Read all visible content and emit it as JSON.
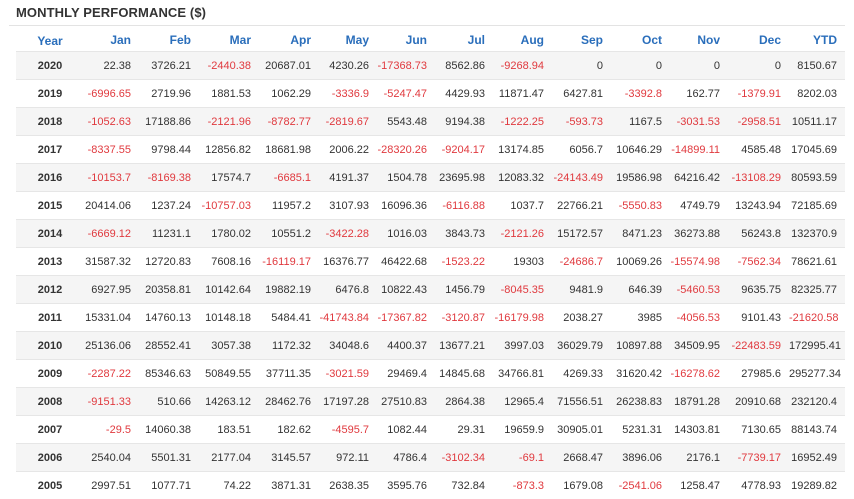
{
  "title": "MONTHLY PERFORMANCE ($)",
  "colors": {
    "header": "#2a6ebb",
    "negative": "#e0393e",
    "text": "#333333",
    "stripe": "#f5f5f5"
  },
  "columns": [
    "Year",
    "Jan",
    "Feb",
    "Mar",
    "Apr",
    "May",
    "Jun",
    "Jul",
    "Aug",
    "Sep",
    "Oct",
    "Nov",
    "Dec",
    "YTD"
  ],
  "rows": [
    [
      "2020",
      "22.38",
      "3726.21",
      "-2440.38",
      "20687.01",
      "4230.26",
      "-17368.73",
      "8562.86",
      "-9268.94",
      "0",
      "0",
      "0",
      "0",
      "8150.67"
    ],
    [
      "2019",
      "-6996.65",
      "2719.96",
      "1881.53",
      "1062.29",
      "-3336.9",
      "-5247.47",
      "4429.93",
      "11871.47",
      "6427.81",
      "-3392.8",
      "162.77",
      "-1379.91",
      "8202.03"
    ],
    [
      "2018",
      "-1052.63",
      "17188.86",
      "-2121.96",
      "-8782.77",
      "-2819.67",
      "5543.48",
      "9194.38",
      "-1222.25",
      "-593.73",
      "1167.5",
      "-3031.53",
      "-2958.51",
      "10511.17"
    ],
    [
      "2017",
      "-8337.55",
      "9798.44",
      "12856.82",
      "18681.98",
      "2006.22",
      "-28320.26",
      "-9204.17",
      "13174.85",
      "6056.7",
      "10646.29",
      "-14899.11",
      "4585.48",
      "17045.69"
    ],
    [
      "2016",
      "-10153.7",
      "-8169.38",
      "17574.7",
      "-6685.1",
      "4191.37",
      "1504.78",
      "23695.98",
      "12083.32",
      "-24143.49",
      "19586.98",
      "64216.42",
      "-13108.29",
      "80593.59"
    ],
    [
      "2015",
      "20414.06",
      "1237.24",
      "-10757.03",
      "11957.2",
      "3107.93",
      "16096.36",
      "-6116.88",
      "1037.7",
      "22766.21",
      "-5550.83",
      "4749.79",
      "13243.94",
      "72185.69"
    ],
    [
      "2014",
      "-6669.12",
      "11231.1",
      "1780.02",
      "10551.2",
      "-3422.28",
      "1016.03",
      "3843.73",
      "-2121.26",
      "15172.57",
      "8471.23",
      "36273.88",
      "56243.8",
      "132370.9"
    ],
    [
      "2013",
      "31587.32",
      "12720.83",
      "7608.16",
      "-16119.17",
      "16376.77",
      "46422.68",
      "-1523.22",
      "19303",
      "-24686.7",
      "10069.26",
      "-15574.98",
      "-7562.34",
      "78621.61"
    ],
    [
      "2012",
      "6927.95",
      "20358.81",
      "10142.64",
      "19882.19",
      "6476.8",
      "10822.43",
      "1456.79",
      "-8045.35",
      "9481.9",
      "646.39",
      "-5460.53",
      "9635.75",
      "82325.77"
    ],
    [
      "2011",
      "15331.04",
      "14760.13",
      "10148.18",
      "5484.41",
      "-41743.84",
      "-17367.82",
      "-3120.87",
      "-16179.98",
      "2038.27",
      "3985",
      "-4056.53",
      "9101.43",
      "-21620.58"
    ],
    [
      "2010",
      "25136.06",
      "28552.41",
      "3057.38",
      "1172.32",
      "34048.6",
      "4400.37",
      "13677.21",
      "3997.03",
      "36029.79",
      "10897.88",
      "34509.95",
      "-22483.59",
      "172995.41"
    ],
    [
      "2009",
      "-2287.22",
      "85346.63",
      "50849.55",
      "37711.35",
      "-3021.59",
      "29469.4",
      "14845.68",
      "34766.81",
      "4269.33",
      "31620.42",
      "-16278.62",
      "27985.6",
      "295277.34"
    ],
    [
      "2008",
      "-9151.33",
      "510.66",
      "14263.12",
      "28462.76",
      "17197.28",
      "27510.83",
      "2864.38",
      "12965.4",
      "71556.51",
      "26238.83",
      "18791.28",
      "20910.68",
      "232120.4"
    ],
    [
      "2007",
      "-29.5",
      "14060.38",
      "183.51",
      "182.62",
      "-4595.7",
      "1082.44",
      "29.31",
      "19659.9",
      "30905.01",
      "5231.31",
      "14303.81",
      "7130.65",
      "88143.74"
    ],
    [
      "2006",
      "2540.04",
      "5501.31",
      "2177.04",
      "3145.57",
      "972.11",
      "4786.4",
      "-3102.34",
      "-69.1",
      "2668.47",
      "3896.06",
      "2176.1",
      "-7739.17",
      "16952.49"
    ],
    [
      "2005",
      "2997.51",
      "1077.71",
      "74.22",
      "3871.31",
      "2638.35",
      "3595.76",
      "732.84",
      "-873.3",
      "1679.08",
      "-2541.06",
      "1258.47",
      "4778.93",
      "19289.82"
    ]
  ]
}
